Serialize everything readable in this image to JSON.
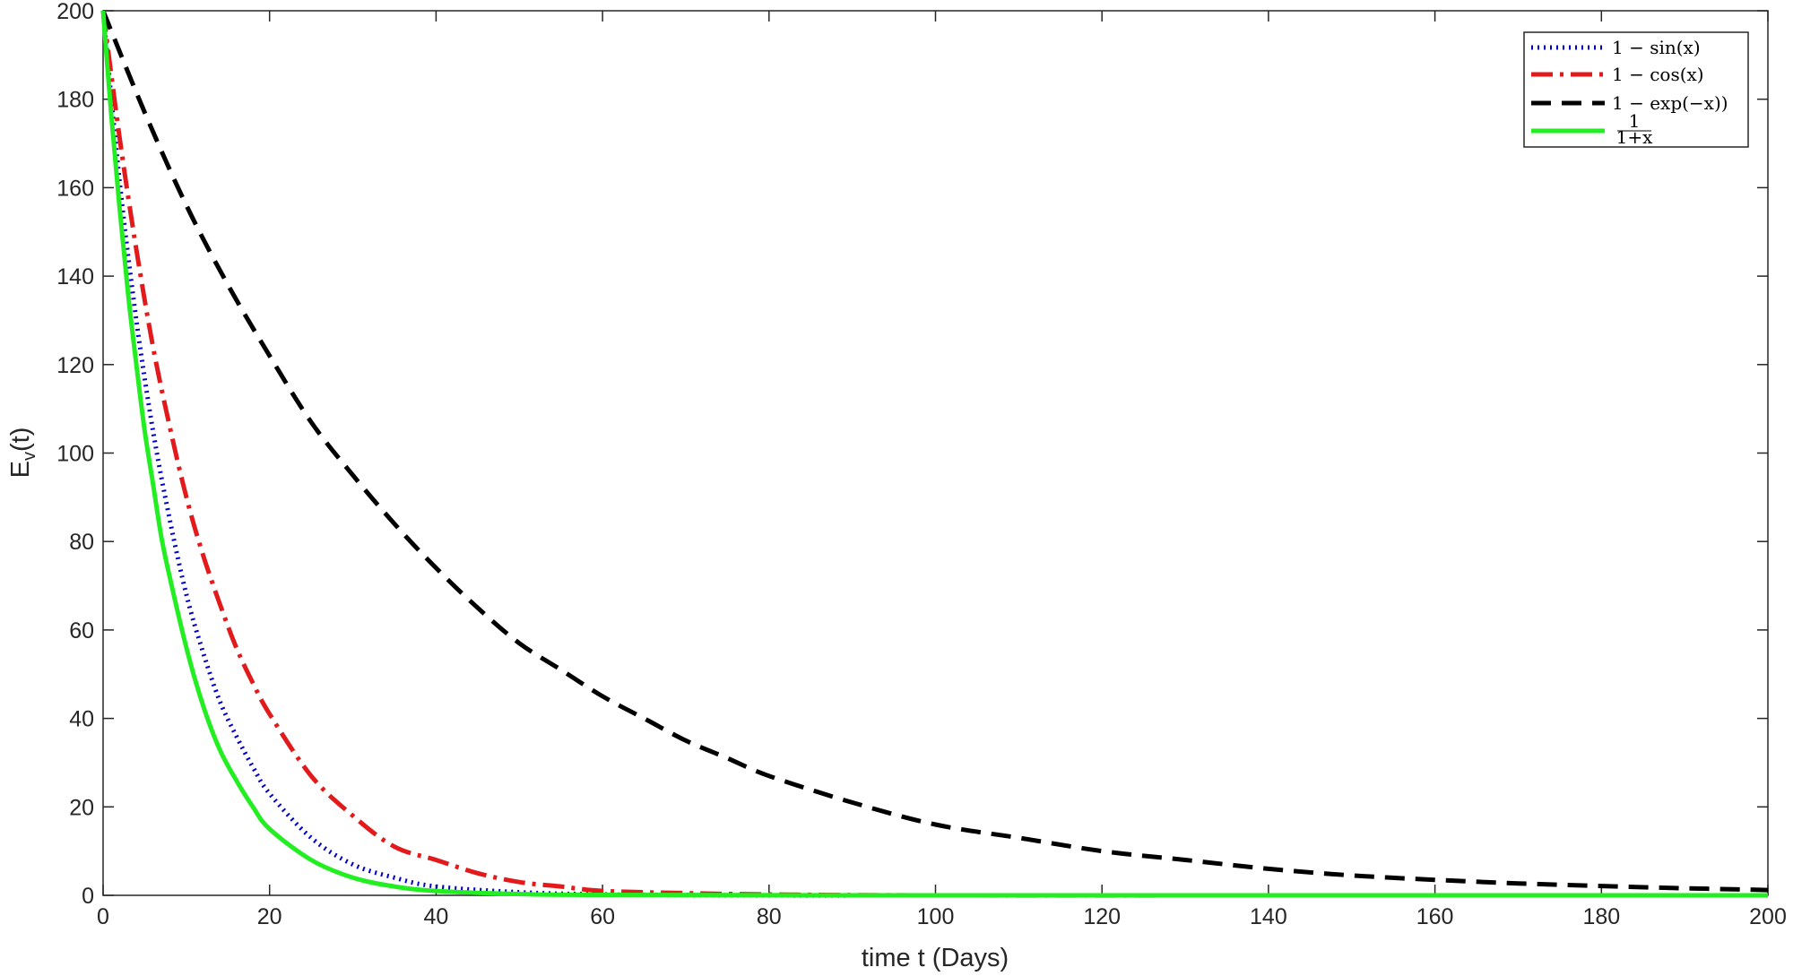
{
  "chart_data": {
    "type": "line",
    "title": "",
    "xlabel": "time t (Days)",
    "ylabel": {
      "main": "E",
      "sub": "v",
      "suffix": "(t)"
    },
    "xlim": [
      0,
      200
    ],
    "ylim": [
      0,
      200
    ],
    "xticks": [
      0,
      20,
      40,
      60,
      80,
      100,
      120,
      140,
      160,
      180,
      200
    ],
    "yticks": [
      0,
      20,
      40,
      60,
      80,
      100,
      120,
      140,
      160,
      180,
      200
    ],
    "grid": false,
    "legend_position": "top-right",
    "series": [
      {
        "name": "1 − sin(x)",
        "color": "#0000cc",
        "style": "dotted",
        "x": [
          0,
          2,
          4,
          6,
          8,
          10,
          12,
          14,
          16,
          18,
          20,
          25,
          30,
          35,
          40,
          50,
          60,
          80,
          100,
          150,
          200
        ],
        "y": [
          200,
          161,
          130,
          105,
          85,
          68,
          55,
          44,
          36,
          29,
          23,
          13,
          7,
          4,
          2,
          0.7,
          0.2,
          0,
          0,
          0,
          0
        ]
      },
      {
        "name": "1 − cos(x)",
        "color": "#e31a1c",
        "style": "dashdot",
        "x": [
          0,
          2,
          4,
          6,
          8,
          10,
          12,
          14,
          16,
          18,
          20,
          25,
          30,
          35,
          40,
          45,
          50,
          55,
          60,
          70,
          80,
          100,
          150,
          200
        ],
        "y": [
          200,
          171,
          146,
          124,
          106,
          90,
          77,
          66,
          56,
          48,
          41,
          27,
          18,
          11,
          8,
          5,
          3,
          2,
          1,
          0.5,
          0.2,
          0,
          0,
          0
        ]
      },
      {
        "name": "1 − exp(−x))",
        "color": "#000000",
        "style": "dashed",
        "x": [
          0,
          5,
          10,
          15,
          20,
          25,
          30,
          35,
          40,
          45,
          50,
          55,
          60,
          65,
          70,
          75,
          80,
          90,
          100,
          110,
          120,
          130,
          140,
          150,
          160,
          170,
          180,
          190,
          200
        ],
        "y": [
          200,
          177,
          156,
          138,
          122,
          107,
          95,
          84,
          74,
          65,
          57,
          51,
          45,
          40,
          35,
          31,
          27,
          21,
          16,
          13,
          10,
          8,
          6,
          4.5,
          3.5,
          2.7,
          2.1,
          1.6,
          1.2
        ]
      },
      {
        "name": "1/(1+x)",
        "color": "#22ee22",
        "style": "solid",
        "x": [
          0,
          1,
          2,
          3,
          4,
          5,
          6,
          7,
          8,
          10,
          12,
          14,
          16,
          18,
          20,
          25,
          30,
          35,
          40,
          50,
          60,
          100,
          150,
          200
        ],
        "y": [
          200,
          176,
          155,
          136,
          120,
          105,
          93,
          81,
          72,
          56,
          43,
          33,
          26,
          20,
          15,
          8,
          4,
          2,
          1,
          0.3,
          0.1,
          0,
          0,
          0
        ]
      }
    ],
    "legend": {
      "entries": [
        {
          "main": "1 − sin(x)"
        },
        {
          "main": "1 − cos(x)"
        },
        {
          "main": "1 − exp(−x))"
        },
        {
          "numerator": "1",
          "denominator": "1+x"
        }
      ]
    }
  }
}
